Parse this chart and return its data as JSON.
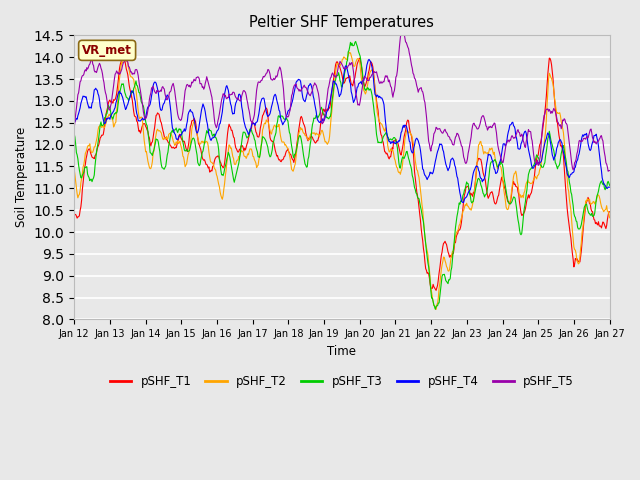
{
  "title": "Peltier SHF Temperatures",
  "xlabel": "Time",
  "ylabel": "Soil Temperature",
  "ylim": [
    8.0,
    14.5
  ],
  "annotation": "VR_met",
  "annotation_color": "#8B0000",
  "annotation_bg": "#FFFFCC",
  "background_color": "#E8E8E8",
  "plot_bg": "#E8E8E8",
  "grid_color": "#FFFFFF",
  "series_colors": {
    "pSHF_T1": "#FF0000",
    "pSHF_T2": "#FFA500",
    "pSHF_T3": "#00CC00",
    "pSHF_T4": "#0000FF",
    "pSHF_T5": "#9900AA"
  },
  "x_tick_labels": [
    "Jan 12",
    "Jan 13",
    "Jan 14",
    "Jan 15",
    "Jan 16",
    "Jan 17",
    "Jan 18",
    "Jan 19",
    "Jan 20",
    "Jan 21",
    "Jan 22",
    "Jan 23",
    "Jan 24",
    "Jan 25",
    "Jan 26",
    "Jan 27"
  ],
  "n_points": 720,
  "figwidth": 6.4,
  "figheight": 4.8,
  "dpi": 100
}
